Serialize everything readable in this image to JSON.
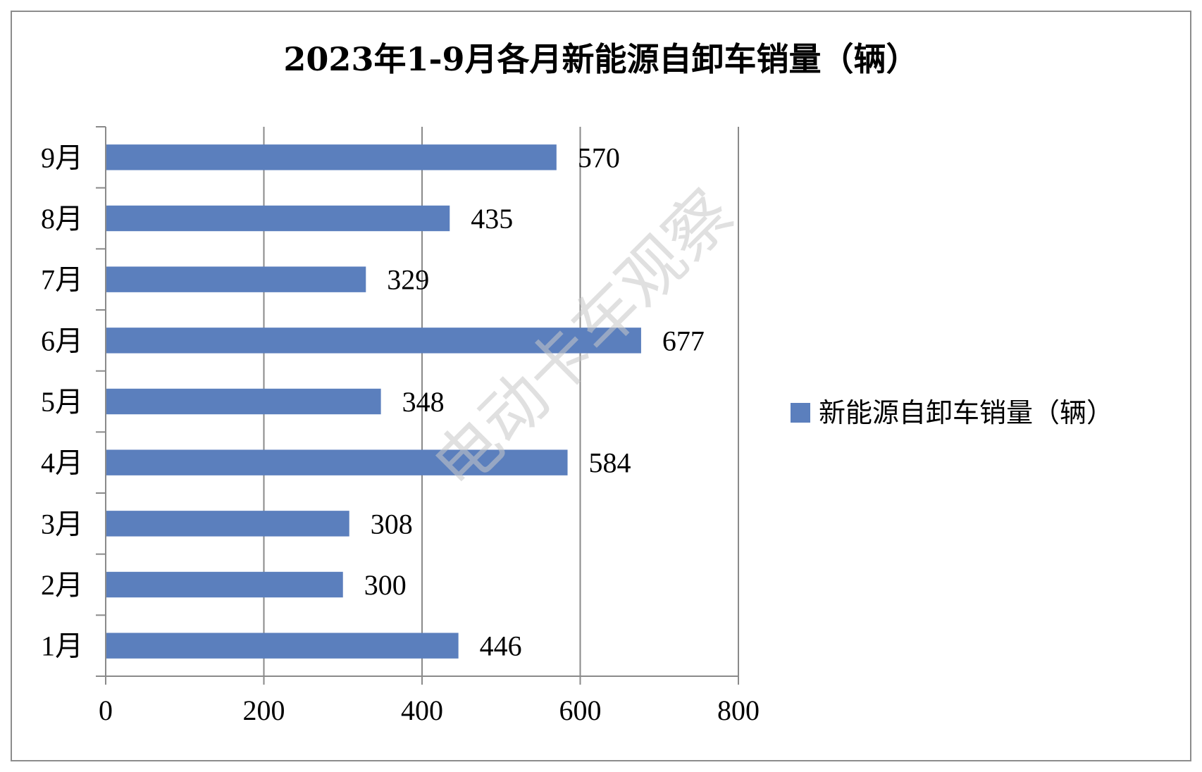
{
  "chart_data": {
    "type": "bar",
    "orientation": "horizontal",
    "title": "2023年1-9月各月新能源自卸车销量（辆）",
    "categories": [
      "1月",
      "2月",
      "3月",
      "4月",
      "5月",
      "6月",
      "7月",
      "8月",
      "9月"
    ],
    "series": [
      {
        "name": "新能源自卸车销量（辆）",
        "values": [
          446,
          300,
          308,
          584,
          348,
          677,
          329,
          435,
          570
        ]
      }
    ],
    "xlim": [
      0,
      800
    ],
    "xticks": [
      0,
      200,
      400,
      600,
      800
    ],
    "grid": true,
    "legend_position": "right",
    "bar_color": "#5b7fbd",
    "watermark": "电动卡车观察"
  }
}
